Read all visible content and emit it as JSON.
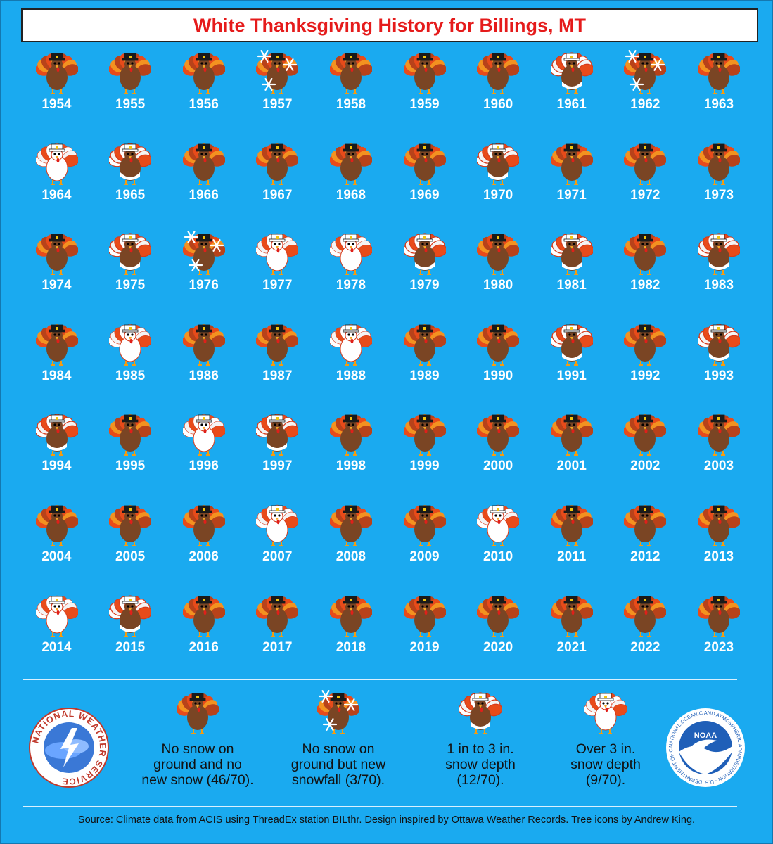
{
  "title": "White Thanksgiving History for Billings, MT",
  "colors": {
    "background": "#1aaaf0",
    "title_text": "#e51b1b",
    "none": "#6b3a1f",
    "new_snow": "#6b3a1f",
    "depth_1_3": "#f3f3f3",
    "depth_over_3": "#ffffff"
  },
  "chart_data": {
    "type": "icon-grid",
    "title": "White Thanksgiving History for Billings, MT",
    "categories": [
      {
        "key": "none",
        "label": "No snow on ground and no new snow (46/70).",
        "count": 46,
        "total": 70
      },
      {
        "key": "new_snow",
        "label": "No snow on ground but new snowfall (3/70).",
        "count": 3,
        "total": 70
      },
      {
        "key": "depth_1_3",
        "label": "1 in to 3 in. snow depth (12/70).",
        "count": 12,
        "total": 70
      },
      {
        "key": "depth_over_3",
        "label": "Over 3 in. snow depth (9/70).",
        "count": 9,
        "total": 70
      }
    ],
    "years": [
      {
        "year": "1954",
        "category": "none"
      },
      {
        "year": "1955",
        "category": "none"
      },
      {
        "year": "1956",
        "category": "none"
      },
      {
        "year": "1957",
        "category": "new_snow"
      },
      {
        "year": "1958",
        "category": "none"
      },
      {
        "year": "1959",
        "category": "none"
      },
      {
        "year": "1960",
        "category": "none"
      },
      {
        "year": "1961",
        "category": "depth_1_3"
      },
      {
        "year": "1962",
        "category": "new_snow"
      },
      {
        "year": "1963",
        "category": "none"
      },
      {
        "year": "1964",
        "category": "depth_over_3"
      },
      {
        "year": "1965",
        "category": "depth_1_3"
      },
      {
        "year": "1966",
        "category": "none"
      },
      {
        "year": "1967",
        "category": "none"
      },
      {
        "year": "1968",
        "category": "none"
      },
      {
        "year": "1969",
        "category": "none"
      },
      {
        "year": "1970",
        "category": "depth_1_3"
      },
      {
        "year": "1971",
        "category": "none"
      },
      {
        "year": "1972",
        "category": "none"
      },
      {
        "year": "1973",
        "category": "none"
      },
      {
        "year": "1974",
        "category": "none"
      },
      {
        "year": "1975",
        "category": "depth_1_3"
      },
      {
        "year": "1976",
        "category": "new_snow"
      },
      {
        "year": "1977",
        "category": "depth_over_3"
      },
      {
        "year": "1978",
        "category": "depth_over_3"
      },
      {
        "year": "1979",
        "category": "depth_1_3"
      },
      {
        "year": "1980",
        "category": "none"
      },
      {
        "year": "1981",
        "category": "depth_1_3"
      },
      {
        "year": "1982",
        "category": "none"
      },
      {
        "year": "1983",
        "category": "depth_1_3"
      },
      {
        "year": "1984",
        "category": "none"
      },
      {
        "year": "1985",
        "category": "depth_over_3"
      },
      {
        "year": "1986",
        "category": "none"
      },
      {
        "year": "1987",
        "category": "none"
      },
      {
        "year": "1988",
        "category": "depth_over_3"
      },
      {
        "year": "1989",
        "category": "none"
      },
      {
        "year": "1990",
        "category": "none"
      },
      {
        "year": "1991",
        "category": "depth_1_3"
      },
      {
        "year": "1992",
        "category": "none"
      },
      {
        "year": "1993",
        "category": "depth_1_3"
      },
      {
        "year": "1994",
        "category": "depth_1_3"
      },
      {
        "year": "1995",
        "category": "none"
      },
      {
        "year": "1996",
        "category": "depth_over_3"
      },
      {
        "year": "1997",
        "category": "depth_1_3"
      },
      {
        "year": "1998",
        "category": "none"
      },
      {
        "year": "1999",
        "category": "none"
      },
      {
        "year": "2000",
        "category": "none"
      },
      {
        "year": "2001",
        "category": "none"
      },
      {
        "year": "2002",
        "category": "none"
      },
      {
        "year": "2003",
        "category": "none"
      },
      {
        "year": "2004",
        "category": "none"
      },
      {
        "year": "2005",
        "category": "none"
      },
      {
        "year": "2006",
        "category": "none"
      },
      {
        "year": "2007",
        "category": "depth_over_3"
      },
      {
        "year": "2008",
        "category": "none"
      },
      {
        "year": "2009",
        "category": "none"
      },
      {
        "year": "2010",
        "category": "depth_over_3"
      },
      {
        "year": "2011",
        "category": "none"
      },
      {
        "year": "2012",
        "category": "none"
      },
      {
        "year": "2013",
        "category": "none"
      },
      {
        "year": "2014",
        "category": "depth_over_3"
      },
      {
        "year": "2015",
        "category": "depth_1_3"
      },
      {
        "year": "2016",
        "category": "none"
      },
      {
        "year": "2017",
        "category": "none"
      },
      {
        "year": "2018",
        "category": "none"
      },
      {
        "year": "2019",
        "category": "none"
      },
      {
        "year": "2020",
        "category": "none"
      },
      {
        "year": "2021",
        "category": "none"
      },
      {
        "year": "2022",
        "category": "none"
      },
      {
        "year": "2023",
        "category": "none"
      }
    ]
  },
  "legend": [
    {
      "key": "none",
      "text": "No snow on\nground and no\nnew snow (46/70)."
    },
    {
      "key": "new_snow",
      "text": "No snow on\nground but new\nsnowfall (3/70)."
    },
    {
      "key": "depth_1_3",
      "text": "1 in to 3 in.\nsnow depth\n(12/70)."
    },
    {
      "key": "depth_over_3",
      "text": "Over 3 in.\nsnow depth\n(9/70)."
    }
  ],
  "logos": {
    "nws_text": "NATIONAL WEATHER SERVICE",
    "noaa_center": "NOAA",
    "noaa_ring": "NATIONAL OCEANIC AND ATMOSPHERIC ADMINISTRATION · U.S. DEPARTMENT OF COMMERCE"
  },
  "source": "Source: Climate data from ACIS using ThreadEx station BILthr. Design inspired by Ottawa Weather Records. Tree icons by Andrew King."
}
